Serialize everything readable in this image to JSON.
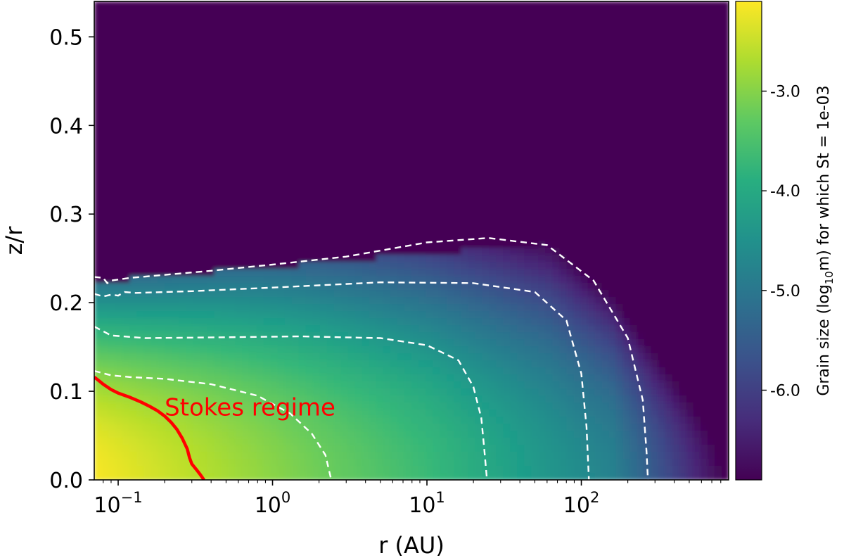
{
  "chart_data": {
    "type": "heatmap",
    "xlabel": "r (AU)",
    "ylabel": "z/r",
    "x_scale": "log",
    "xlim": [
      0.07,
      900
    ],
    "ylim": [
      0.0,
      0.54
    ],
    "x_ticks": [
      {
        "value": 0.1,
        "base": "10",
        "exp": "−1"
      },
      {
        "value": 1,
        "base": "10",
        "exp": "0"
      },
      {
        "value": 10,
        "base": "10",
        "exp": "1"
      },
      {
        "value": 100,
        "base": "10",
        "exp": "2"
      }
    ],
    "y_ticks": [
      {
        "value": 0.0,
        "label": "0.0"
      },
      {
        "value": 0.1,
        "label": "0.1"
      },
      {
        "value": 0.2,
        "label": "0.2"
      },
      {
        "value": 0.3,
        "label": "0.3"
      },
      {
        "value": 0.4,
        "label": "0.4"
      },
      {
        "value": 0.5,
        "label": "0.5"
      }
    ],
    "colorbar": {
      "label_prefix": "Grain size (log",
      "label_sub": "10",
      "label_suffix": "m) for which St = 1e-03",
      "range": [
        -6.9,
        -2.1
      ],
      "colormap": "viridis",
      "ticks": [
        {
          "value": -3.0,
          "label": "-3.0"
        },
        {
          "value": -4.0,
          "label": "-4.0"
        },
        {
          "value": -5.0,
          "label": "-5.0"
        },
        {
          "value": -6.0,
          "label": "-6.0"
        }
      ]
    },
    "contours": [
      {
        "level": -3.0,
        "style": "dashed",
        "color": "#ffffff",
        "points": [
          [
            0.07,
            0.123
          ],
          [
            0.09,
            0.118
          ],
          [
            0.12,
            0.116
          ],
          [
            0.2,
            0.114
          ],
          [
            0.4,
            0.108
          ],
          [
            0.8,
            0.095
          ],
          [
            1.3,
            0.075
          ],
          [
            1.8,
            0.052
          ],
          [
            2.2,
            0.028
          ],
          [
            2.4,
            0.0
          ]
        ]
      },
      {
        "level": -4.0,
        "style": "dashed",
        "color": "#ffffff",
        "points": [
          [
            0.07,
            0.173
          ],
          [
            0.09,
            0.163
          ],
          [
            0.15,
            0.16
          ],
          [
            0.5,
            0.161
          ],
          [
            1.5,
            0.162
          ],
          [
            5,
            0.16
          ],
          [
            10,
            0.152
          ],
          [
            16,
            0.135
          ],
          [
            20,
            0.105
          ],
          [
            22.5,
            0.07
          ],
          [
            23.5,
            0.035
          ],
          [
            24.5,
            0.0
          ]
        ]
      },
      {
        "level": -5.0,
        "style": "dashed",
        "color": "#ffffff",
        "points": [
          [
            0.07,
            0.21
          ],
          [
            0.08,
            0.207
          ],
          [
            0.09,
            0.209
          ],
          [
            0.1,
            0.208
          ],
          [
            0.11,
            0.212
          ],
          [
            0.13,
            0.211
          ],
          [
            0.3,
            0.213
          ],
          [
            1,
            0.217
          ],
          [
            5,
            0.223
          ],
          [
            20,
            0.222
          ],
          [
            50,
            0.212
          ],
          [
            80,
            0.18
          ],
          [
            100,
            0.12
          ],
          [
            108,
            0.06
          ],
          [
            112,
            0.0
          ]
        ]
      },
      {
        "level": -6.0,
        "style": "dashed",
        "color": "#ffffff",
        "points": [
          [
            0.07,
            0.229
          ],
          [
            0.08,
            0.228
          ],
          [
            0.085,
            0.222
          ],
          [
            0.09,
            0.225
          ],
          [
            0.12,
            0.228
          ],
          [
            0.4,
            0.236
          ],
          [
            1,
            0.243
          ],
          [
            3,
            0.252
          ],
          [
            10,
            0.268
          ],
          [
            25,
            0.273
          ],
          [
            60,
            0.265
          ],
          [
            120,
            0.225
          ],
          [
            200,
            0.16
          ],
          [
            250,
            0.09
          ],
          [
            265,
            0.03
          ],
          [
            270,
            0.0
          ]
        ]
      }
    ],
    "stokes_boundary": {
      "color": "#ff0000",
      "points": [
        [
          0.07,
          0.116
        ],
        [
          0.075,
          0.112
        ],
        [
          0.08,
          0.108
        ],
        [
          0.09,
          0.102
        ],
        [
          0.1,
          0.098
        ],
        [
          0.12,
          0.093
        ],
        [
          0.14,
          0.088
        ],
        [
          0.16,
          0.083
        ],
        [
          0.18,
          0.078
        ],
        [
          0.2,
          0.072
        ],
        [
          0.22,
          0.065
        ],
        [
          0.24,
          0.057
        ],
        [
          0.26,
          0.047
        ],
        [
          0.28,
          0.035
        ],
        [
          0.29,
          0.025
        ],
        [
          0.3,
          0.018
        ],
        [
          0.32,
          0.012
        ],
        [
          0.34,
          0.006
        ],
        [
          0.36,
          0.0
        ]
      ]
    },
    "annotations": [
      {
        "text": "Stokes regime",
        "x": 0.2,
        "y": 0.082,
        "color": "#ff0000"
      }
    ]
  }
}
